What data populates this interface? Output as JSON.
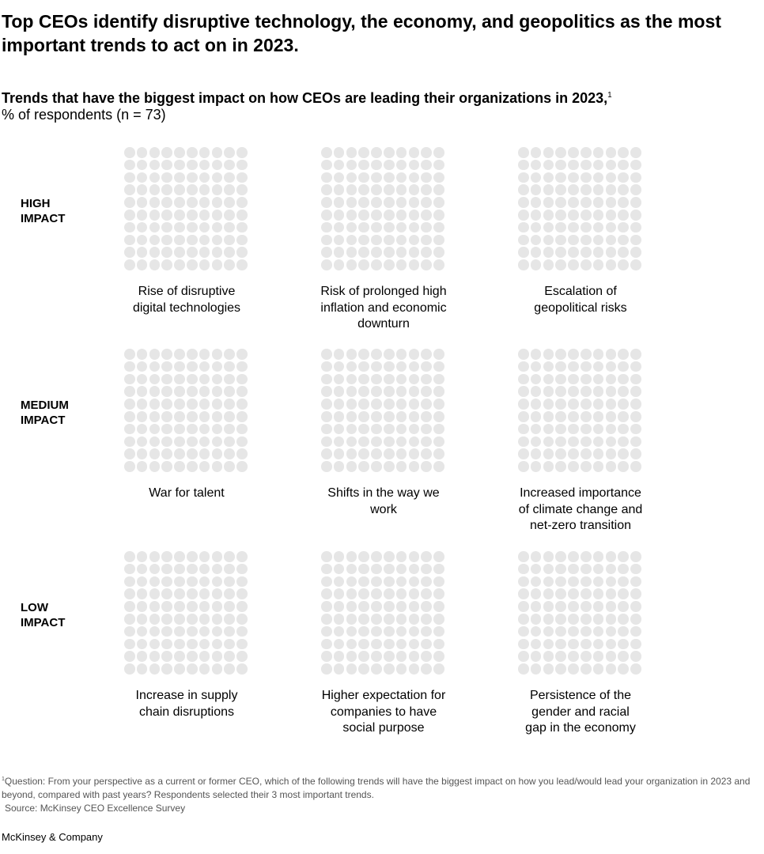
{
  "title": "Top CEOs identify disruptive technology, the economy, and geopolitics as the most important trends to act on in 2023.",
  "subtitle": "Trends that have the biggest impact on how CEOs are leading their organizations in 2023,",
  "subtitle_note": "1",
  "unit": "% of respondents (n = 73)",
  "chart_data": {
    "type": "waffle",
    "grid": "10x10",
    "dot_color": "#e6e6e6",
    "rows": [
      {
        "label_line1": "HIGH",
        "label_line2": "IMPACT",
        "panels": [
          {
            "label": "Rise of disruptive digital technologies"
          },
          {
            "label": "Risk of prolonged high inflation and economic downturn"
          },
          {
            "label": "Escalation of geopolitical risks"
          }
        ]
      },
      {
        "label_line1": "MEDIUM",
        "label_line2": "IMPACT",
        "panels": [
          {
            "label": "War for talent"
          },
          {
            "label": "Shifts in the way we work"
          },
          {
            "label": "Increased importance of climate change and net-zero transition"
          }
        ]
      },
      {
        "label_line1": "LOW",
        "label_line2": "IMPACT",
        "panels": [
          {
            "label": "Increase in supply chain disruptions"
          },
          {
            "label": "Higher expectation for companies to have social purpose"
          },
          {
            "label": "Persistence of the gender and racial gap in the economy"
          }
        ]
      }
    ]
  },
  "footnote": {
    "marker": "1",
    "question": "Question: From your perspective as a current or former CEO, which of the following trends will have the biggest impact on how you lead/would lead your organization in 2023 and beyond, compared with past years? Respondents selected their 3 most important trends.",
    "source": "Source: McKinsey CEO Excellence Survey"
  },
  "brand": "McKinsey & Company"
}
